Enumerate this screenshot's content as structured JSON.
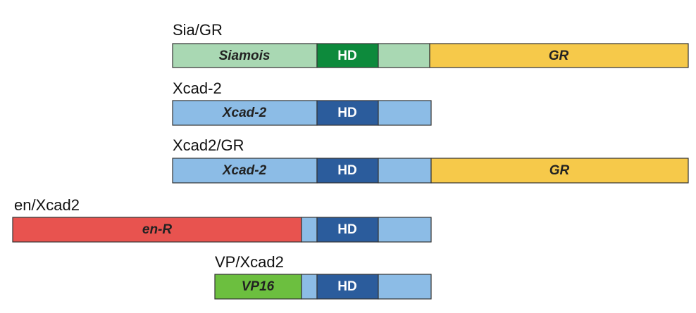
{
  "constructs": [
    {
      "name": "Sia/GR",
      "domains": [
        "Siamois",
        "HD",
        "GR"
      ]
    },
    {
      "name": "Xcad-2",
      "domains": [
        "Xcad-2",
        "HD"
      ]
    },
    {
      "name": "Xcad2/GR",
      "domains": [
        "Xcad-2",
        "HD",
        "GR"
      ]
    },
    {
      "name": "en/Xcad2",
      "domains": [
        "en-R",
        "HD"
      ]
    },
    {
      "name": "VP/Xcad2",
      "domains": [
        "VP16",
        "HD"
      ]
    }
  ]
}
